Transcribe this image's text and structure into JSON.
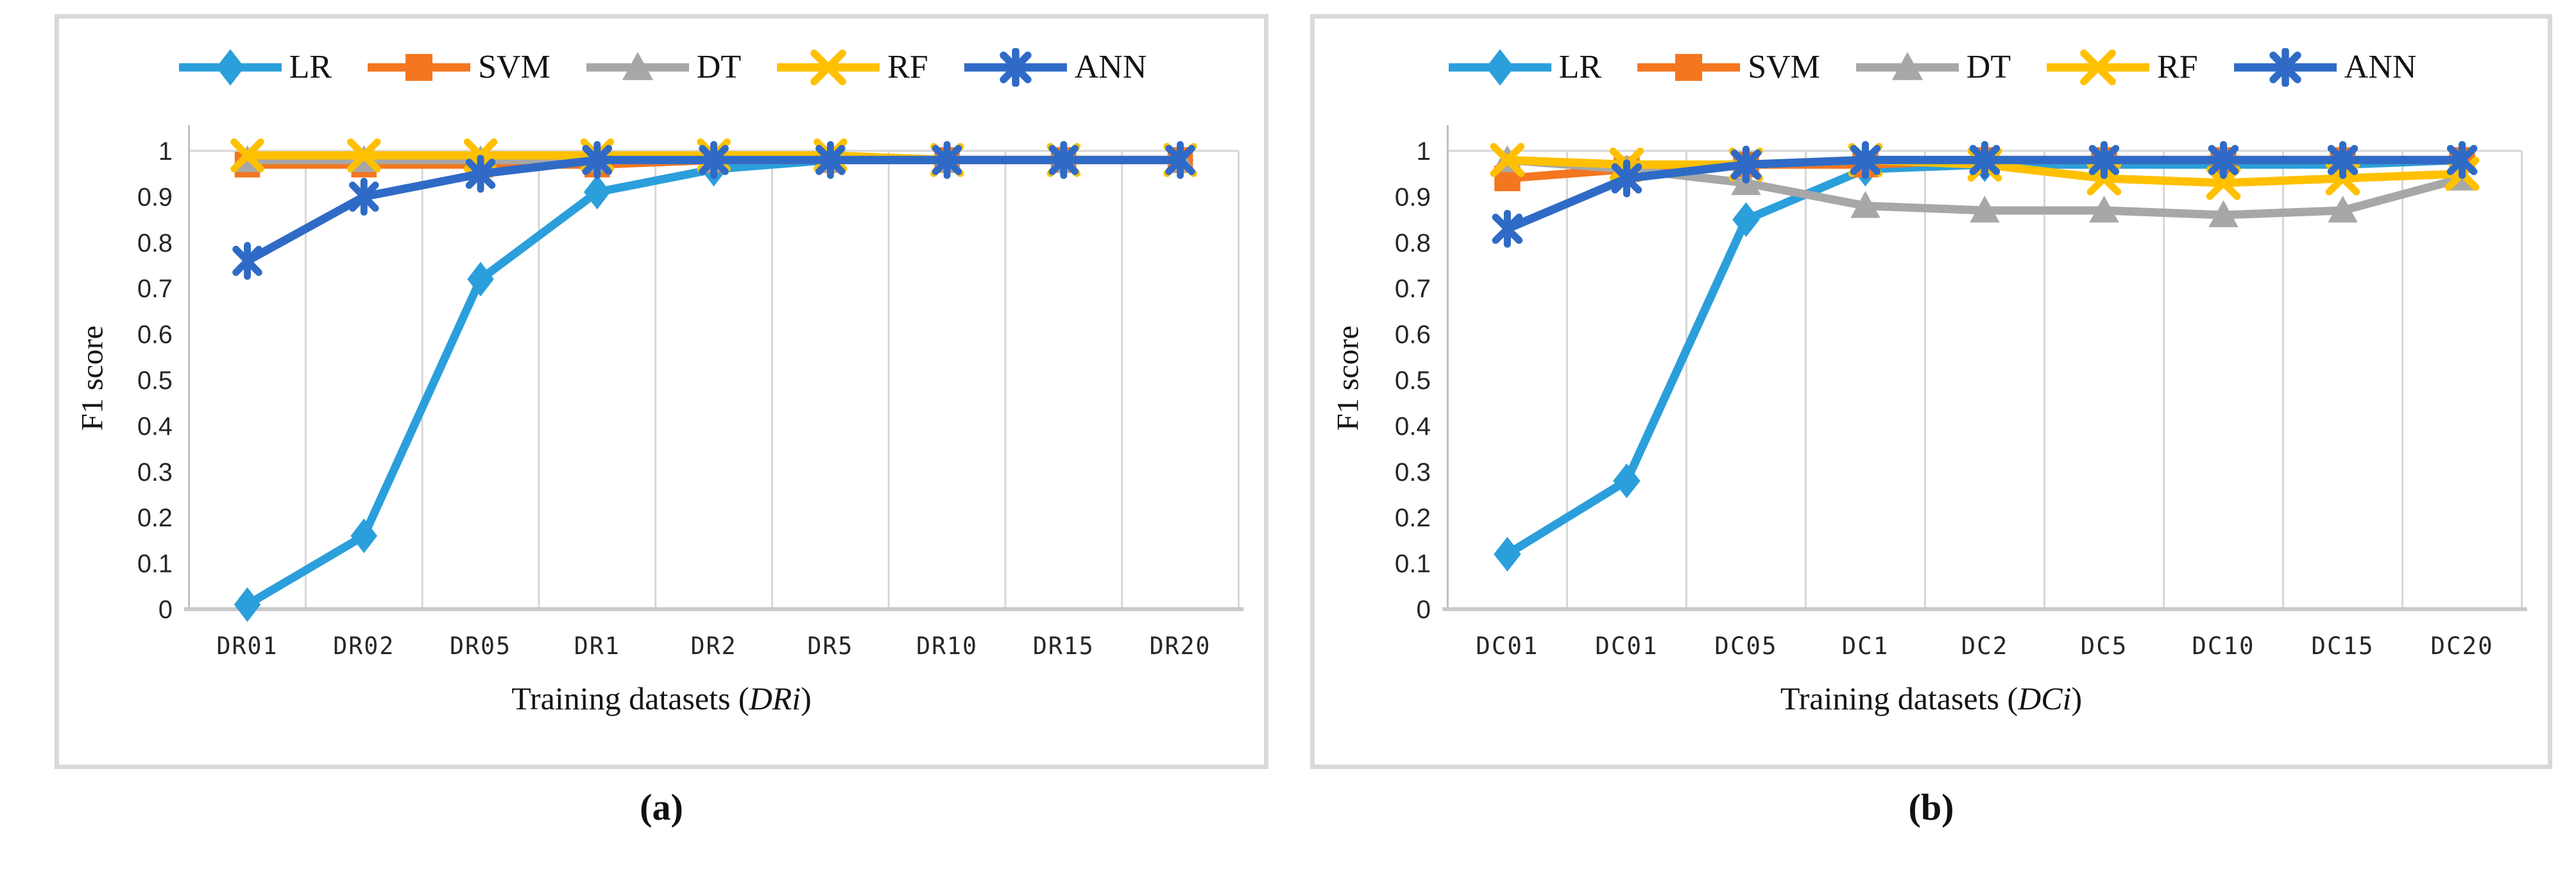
{
  "figure": {
    "background": "#ffffff",
    "panel_border_color": "#d9d9d9",
    "gridline_color": "#d6d6d6",
    "axis_line_color": "#bfbfbf",
    "tick_text_color": "#262626",
    "label_text_color": "#141414"
  },
  "chart_data": [
    {
      "type": "line",
      "panel_label": "(a)",
      "ylabel": "F1 score",
      "xlabel_prefix": "Training datasets (",
      "xlabel_italic": "DRi",
      "xlabel_suffix": ")",
      "ylim": [
        0,
        1
      ],
      "ytick_labels": [
        "0",
        "0.1",
        "0.2",
        "0.3",
        "0.4",
        "0.5",
        "0.6",
        "0.7",
        "0.8",
        "0.9",
        "1"
      ],
      "grid": "vertical-major-gridlines; horizontal line at y=1 only",
      "legend_position": "top",
      "categories": [
        "DR01",
        "DR02",
        "DR05",
        "DR1",
        "DR2",
        "DR5",
        "DR10",
        "DR15",
        "DR20"
      ],
      "series": [
        {
          "name": "LR",
          "color": "#2B9FDB",
          "marker": "diamond",
          "values": [
            0.01,
            0.16,
            0.72,
            0.91,
            0.96,
            0.98,
            0.98,
            0.98,
            0.98
          ]
        },
        {
          "name": "SVM",
          "color": "#F4761F",
          "marker": "square",
          "values": [
            0.97,
            0.97,
            0.97,
            0.97,
            0.98,
            0.98,
            0.98,
            0.98,
            0.98
          ]
        },
        {
          "name": "DT",
          "color": "#A7A7A7",
          "marker": "triangle",
          "values": [
            0.98,
            0.98,
            0.98,
            0.98,
            0.98,
            0.98,
            0.98,
            0.98,
            0.98
          ]
        },
        {
          "name": "RF",
          "color": "#FFC000",
          "marker": "x",
          "values": [
            0.99,
            0.99,
            0.99,
            0.99,
            0.99,
            0.99,
            0.98,
            0.98,
            0.98
          ]
        },
        {
          "name": "ANN",
          "color": "#2F6BC6",
          "marker": "asterisk",
          "values": [
            0.76,
            0.9,
            0.95,
            0.98,
            0.98,
            0.98,
            0.98,
            0.98,
            0.98
          ]
        }
      ]
    },
    {
      "type": "line",
      "panel_label": "(b)",
      "ylabel": "F1 score",
      "xlabel_prefix": "Training datasets (",
      "xlabel_italic": "DCi",
      "xlabel_suffix": ")",
      "ylim": [
        0,
        1
      ],
      "ytick_labels": [
        "0",
        "0.1",
        "0.2",
        "0.3",
        "0.4",
        "0.5",
        "0.6",
        "0.7",
        "0.8",
        "0.9",
        "1"
      ],
      "grid": "vertical-major-gridlines; horizontal line at y=1 only",
      "legend_position": "top",
      "categories": [
        "DC01",
        "DC01",
        "DC05",
        "DC1",
        "DC2",
        "DC5",
        "DC10",
        "DC15",
        "DC20"
      ],
      "series": [
        {
          "name": "LR",
          "color": "#2B9FDB",
          "marker": "diamond",
          "values": [
            0.12,
            0.28,
            0.85,
            0.96,
            0.97,
            0.97,
            0.97,
            0.97,
            0.98
          ]
        },
        {
          "name": "SVM",
          "color": "#F4761F",
          "marker": "square",
          "values": [
            0.94,
            0.96,
            0.97,
            0.97,
            0.98,
            0.98,
            0.98,
            0.98,
            0.98
          ]
        },
        {
          "name": "DT",
          "color": "#A7A7A7",
          "marker": "triangle",
          "values": [
            0.98,
            0.96,
            0.93,
            0.88,
            0.87,
            0.87,
            0.86,
            0.87,
            0.94
          ]
        },
        {
          "name": "RF",
          "color": "#FFC000",
          "marker": "x",
          "values": [
            0.98,
            0.97,
            0.97,
            0.98,
            0.97,
            0.94,
            0.93,
            0.94,
            0.95
          ]
        },
        {
          "name": "ANN",
          "color": "#2F6BC6",
          "marker": "asterisk",
          "values": [
            0.83,
            0.94,
            0.97,
            0.98,
            0.98,
            0.98,
            0.98,
            0.98,
            0.98
          ]
        }
      ]
    }
  ]
}
